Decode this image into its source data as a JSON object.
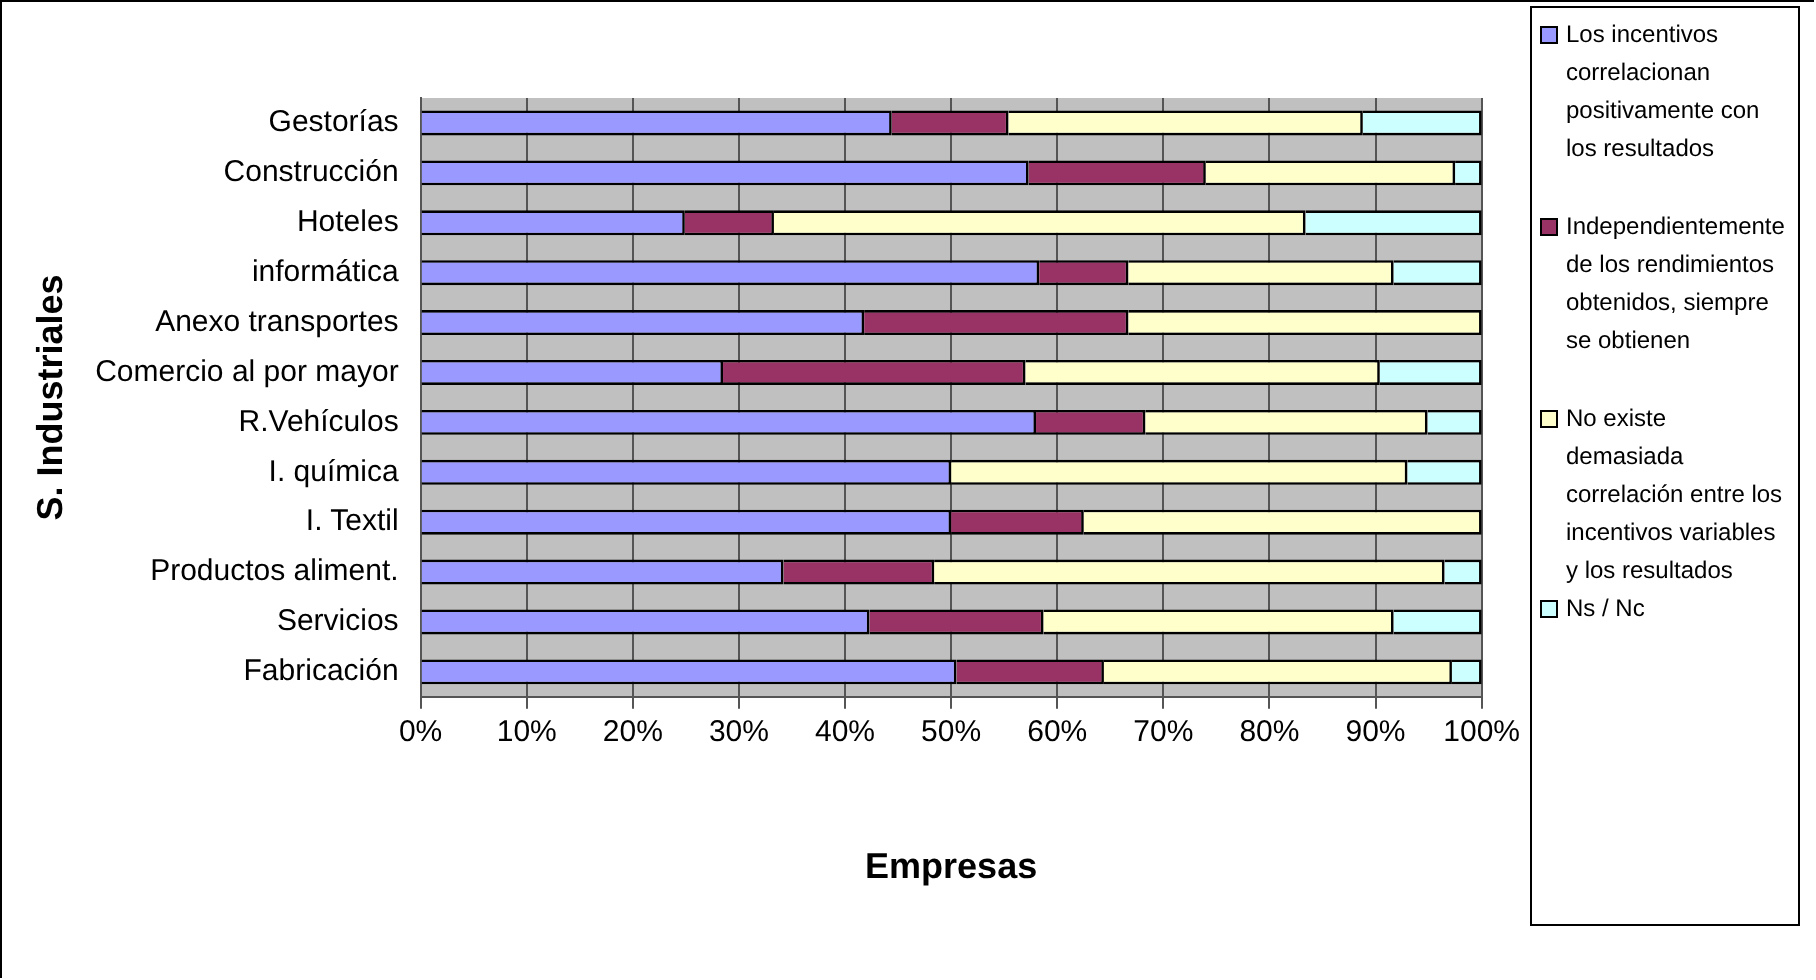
{
  "chart_data": {
    "type": "bar",
    "orientation": "horizontal",
    "stacked": true,
    "xlabel": "Empresas",
    "ylabel": "S. Industriales",
    "categories": [
      "Gestorías",
      "Construcción",
      "Hoteles",
      "informática",
      "Anexo transportes",
      "Comercio al por mayor",
      "R.Vehículos",
      "I. química",
      "I. Textil",
      "Productos aliment.",
      "Servicios",
      "Fabricación"
    ],
    "series": [
      {
        "name": "Los incentivos correlacionan positivamente con los resultados",
        "color": "#9999ff",
        "values": [
          44.4,
          57.3,
          24.9,
          58.3,
          41.8,
          28.5,
          58.0,
          50.0,
          50.0,
          34.2,
          42.3,
          50.5
        ]
      },
      {
        "name": "Independientemente de los rendimientos obtenidos, siempre se obtienen",
        "color": "#993366",
        "values": [
          11.0,
          16.7,
          8.4,
          8.4,
          24.9,
          28.5,
          10.3,
          0,
          12.5,
          14.2,
          16.4,
          13.9
        ]
      },
      {
        "name": "No existe demasiada correlación entre los incentivos variables y los resultados",
        "color": "#ffffcc",
        "values": [
          33.4,
          23.5,
          50.1,
          25.0,
          33.3,
          33.4,
          26.6,
          43.0,
          37.5,
          48.1,
          33.0,
          32.8
        ]
      },
      {
        "name": "Ns / Nc",
        "color": "#ccffff",
        "values": [
          11.2,
          2.5,
          16.6,
          8.3,
          0,
          9.6,
          5.1,
          7.0,
          0,
          3.5,
          8.3,
          2.8
        ]
      }
    ],
    "xlim": [
      0,
      100
    ],
    "xticks": [
      {
        "value": 0,
        "label": "0%"
      },
      {
        "value": 10,
        "label": "10%"
      },
      {
        "value": 20,
        "label": "20%"
      },
      {
        "value": 30,
        "label": "30%"
      },
      {
        "value": 40,
        "label": "40%"
      },
      {
        "value": 50,
        "label": "50%"
      },
      {
        "value": 60,
        "label": "60%"
      },
      {
        "value": 70,
        "label": "70%"
      },
      {
        "value": 80,
        "label": "80%"
      },
      {
        "value": 90,
        "label": "90%"
      },
      {
        "value": 100,
        "label": "100%"
      }
    ],
    "grid": "x",
    "legend": "right"
  }
}
